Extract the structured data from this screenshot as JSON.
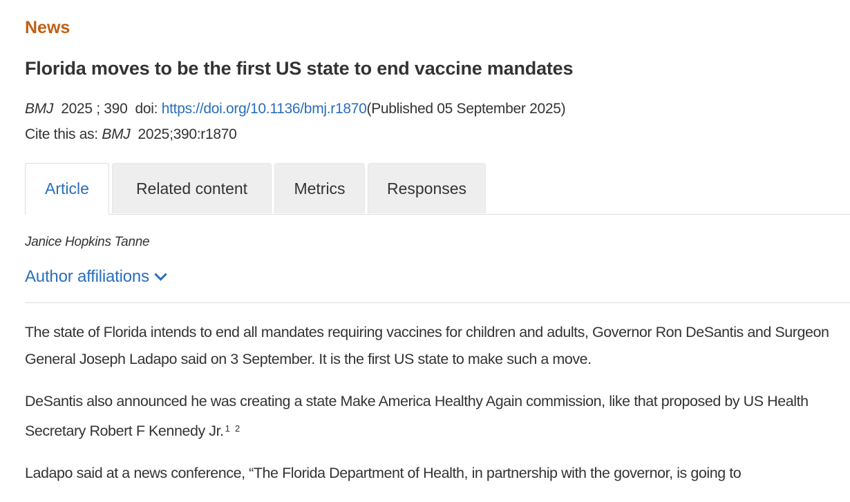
{
  "section": "News",
  "title": "Florida moves to be the first US state to end vaccine mandates",
  "meta": {
    "journal": "BMJ",
    "year_vol": "2025 ; 390",
    "doi_label": "doi:",
    "doi": "https://doi.org/10.1136/bmj.r1870",
    "published": "(Published 05 September 2025)",
    "cite_label": "Cite this as:",
    "cite_journal": "BMJ",
    "cite_ref": "2025;390:r1870"
  },
  "tabs": [
    {
      "label": "Article",
      "active": true
    },
    {
      "label": "Related content"
    },
    {
      "label": "Metrics"
    },
    {
      "label": "Responses"
    }
  ],
  "author": "Janice Hopkins Tanne",
  "affiliations_label": "Author affiliations",
  "paragraphs": {
    "p1": "The state of Florida intends to end all mandates requiring vaccines for children and adults, Governor Ron DeSantis and Surgeon General Joseph Ladapo said on 3 September. It is the first US state to make such a move.",
    "p2": "DeSantis also announced he was creating a state Make America Healthy Again commission, like that proposed by US Health Secretary Robert F Kennedy Jr.",
    "p2_ref1": "1",
    "p2_ref2": "2",
    "p3": "Ladapo said at a news conference, “The Florida Department of Health, in partnership with the governor, is going to"
  },
  "colors": {
    "section": "#c15f13",
    "link": "#2a6ebb",
    "text": "#333333"
  }
}
